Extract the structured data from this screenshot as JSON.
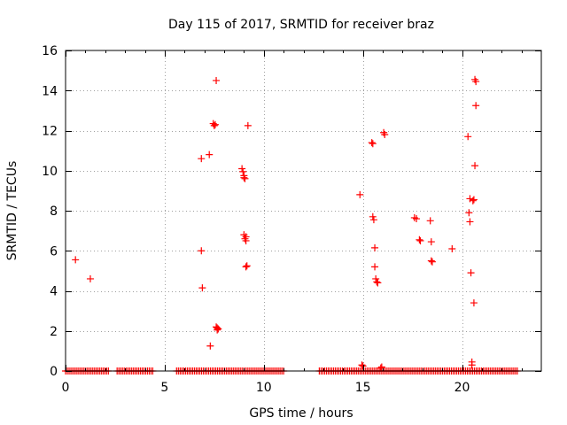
{
  "chart_data": {
    "type": "scatter",
    "title": "Day 115 of 2017, SRMTID for receiver braz",
    "xlabel": "GPS time / hours",
    "ylabel": "SRMTID / TECUs",
    "xlim": [
      0,
      24
    ],
    "ylim": [
      0,
      16
    ],
    "xticks": [
      0,
      5,
      10,
      15,
      20
    ],
    "yticks": [
      0,
      2,
      4,
      6,
      8,
      10,
      12,
      14,
      16
    ],
    "grid": true,
    "marker": "+",
    "color": "#ff0000",
    "series": [
      {
        "name": "SRMTID",
        "points": [
          [
            0.5,
            5.55
          ],
          [
            1.25,
            4.6
          ],
          [
            6.85,
            10.6
          ],
          [
            6.85,
            6.0
          ],
          [
            6.9,
            4.15
          ],
          [
            7.25,
            10.8
          ],
          [
            7.3,
            1.25
          ],
          [
            7.45,
            12.35
          ],
          [
            7.55,
            12.3
          ],
          [
            7.5,
            12.25
          ],
          [
            7.6,
            14.5
          ],
          [
            7.6,
            2.2
          ],
          [
            7.65,
            2.15
          ],
          [
            7.7,
            2.1
          ],
          [
            7.65,
            2.05
          ],
          [
            8.9,
            10.1
          ],
          [
            8.95,
            9.95
          ],
          [
            9.0,
            9.75
          ],
          [
            9.0,
            9.65
          ],
          [
            9.05,
            9.6
          ],
          [
            9.0,
            6.8
          ],
          [
            9.1,
            6.7
          ],
          [
            9.05,
            6.6
          ],
          [
            9.1,
            6.5
          ],
          [
            9.15,
            5.25
          ],
          [
            9.1,
            5.2
          ],
          [
            9.2,
            12.25
          ],
          [
            14.85,
            8.8
          ],
          [
            14.95,
            0.3
          ],
          [
            15.0,
            0.25
          ],
          [
            15.45,
            11.4
          ],
          [
            15.5,
            11.35
          ],
          [
            15.5,
            7.7
          ],
          [
            15.55,
            7.55
          ],
          [
            15.6,
            6.15
          ],
          [
            15.6,
            5.2
          ],
          [
            15.65,
            4.6
          ],
          [
            15.7,
            4.45
          ],
          [
            15.75,
            4.4
          ],
          [
            15.9,
            0.15
          ],
          [
            15.95,
            0.2
          ],
          [
            16.05,
            11.9
          ],
          [
            16.1,
            11.8
          ],
          [
            17.6,
            7.65
          ],
          [
            17.7,
            7.6
          ],
          [
            17.85,
            6.55
          ],
          [
            17.9,
            6.5
          ],
          [
            18.4,
            7.5
          ],
          [
            18.45,
            6.45
          ],
          [
            18.45,
            5.5
          ],
          [
            18.5,
            5.45
          ],
          [
            19.5,
            6.1
          ],
          [
            20.3,
            11.7
          ],
          [
            20.35,
            7.9
          ],
          [
            20.4,
            7.45
          ],
          [
            20.4,
            8.6
          ],
          [
            20.45,
            4.9
          ],
          [
            20.5,
            0.45
          ],
          [
            20.5,
            0.3
          ],
          [
            20.55,
            8.5
          ],
          [
            20.6,
            8.55
          ],
          [
            20.6,
            3.4
          ],
          [
            20.65,
            10.25
          ],
          [
            20.65,
            14.55
          ],
          [
            20.7,
            14.45
          ],
          [
            20.7,
            13.25
          ]
        ]
      }
    ],
    "zero_band_ranges": [
      [
        0.0,
        2.2
      ],
      [
        2.6,
        4.4
      ],
      [
        5.6,
        11.0
      ],
      [
        12.8,
        22.8
      ]
    ],
    "zero_band_step": 0.09
  }
}
